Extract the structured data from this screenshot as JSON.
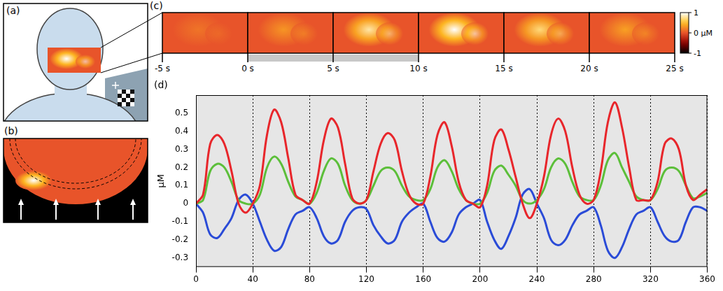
{
  "panels": {
    "a": {
      "letter": "(a)"
    },
    "b": {
      "letter": "(b)"
    },
    "c": {
      "letter": "(c)",
      "frame_times": [
        -5,
        0,
        5,
        10,
        15,
        20
      ],
      "frame_peaks": [
        0.15,
        0.3,
        0.8,
        1.0,
        0.7,
        0.35
      ],
      "time_range": [
        -5,
        25
      ],
      "time_ticks": [
        {
          "value": -5,
          "label": "-5 s"
        },
        {
          "value": 0,
          "label": "0 s"
        },
        {
          "value": 5,
          "label": "5 s"
        },
        {
          "value": 10,
          "label": "10 s"
        },
        {
          "value": 15,
          "label": "15 s"
        },
        {
          "value": 20,
          "label": "20 s"
        },
        {
          "value": 25,
          "label": "25 s"
        }
      ],
      "stimulus": [
        0,
        10
      ],
      "colorbar": {
        "range": [
          -1,
          1
        ],
        "ticks": [
          1,
          {
            "value": 0,
            "label": "0 μM"
          },
          -1
        ]
      }
    }
  },
  "chart_data": {
    "letter": "(d)",
    "type": "line",
    "y_label": "μM",
    "x": [
      0,
      5,
      10,
      15,
      20,
      25,
      30,
      35,
      40,
      45,
      50,
      55,
      60,
      65,
      70,
      75,
      80,
      85,
      90,
      95,
      100,
      105,
      110,
      115,
      120,
      125,
      130,
      135,
      140,
      145,
      150,
      155,
      160,
      165,
      170,
      175,
      180,
      185,
      190,
      195,
      200,
      205,
      210,
      215,
      220,
      225,
      230,
      235,
      240,
      245,
      250,
      255,
      260,
      265,
      270,
      275,
      280,
      285,
      290,
      295,
      300,
      305,
      310,
      315,
      320,
      325,
      330,
      335,
      340,
      345,
      350,
      355,
      360
    ],
    "series": [
      {
        "color": "#e8262b",
        "values": [
          0,
          0.05,
          0.33,
          0.38,
          0.33,
          0.18,
          0.0,
          -0.05,
          0.0,
          0.1,
          0.38,
          0.52,
          0.45,
          0.25,
          0.05,
          0.02,
          0.0,
          0.12,
          0.35,
          0.47,
          0.42,
          0.22,
          0.03,
          0.0,
          0.02,
          0.18,
          0.33,
          0.39,
          0.35,
          0.18,
          0.05,
          0.0,
          0.0,
          0.15,
          0.38,
          0.45,
          0.32,
          0.12,
          0.02,
          0.0,
          -0.02,
          0.1,
          0.35,
          0.41,
          0.3,
          0.15,
          0.0,
          -0.08,
          0.0,
          0.15,
          0.38,
          0.47,
          0.4,
          0.2,
          0.05,
          0.0,
          0.02,
          0.18,
          0.45,
          0.56,
          0.42,
          0.2,
          0.02,
          0.02,
          0.02,
          0.12,
          0.33,
          0.36,
          0.3,
          0.1,
          0.02,
          0.05,
          0.08
        ]
      },
      {
        "color": "#5cbf3a",
        "values": [
          0,
          0.02,
          0.18,
          0.22,
          0.2,
          0.12,
          0.02,
          0.0,
          0.0,
          0.05,
          0.2,
          0.26,
          0.22,
          0.12,
          0.04,
          0.02,
          0.0,
          0.06,
          0.18,
          0.25,
          0.22,
          0.1,
          0.02,
          0.0,
          0.02,
          0.1,
          0.18,
          0.2,
          0.18,
          0.1,
          0.04,
          0.02,
          0.02,
          0.08,
          0.2,
          0.24,
          0.18,
          0.08,
          0.02,
          0.0,
          0.0,
          0.06,
          0.18,
          0.21,
          0.16,
          0.1,
          0.02,
          0.0,
          0.02,
          0.08,
          0.2,
          0.25,
          0.22,
          0.12,
          0.04,
          0.02,
          0.02,
          0.1,
          0.24,
          0.28,
          0.2,
          0.12,
          0.04,
          0.02,
          0.02,
          0.08,
          0.18,
          0.2,
          0.18,
          0.1,
          0.03,
          0.04,
          0.06
        ]
      },
      {
        "color": "#2a4bd7",
        "values": [
          0,
          -0.05,
          -0.17,
          -0.19,
          -0.14,
          -0.08,
          0.02,
          0.05,
          0.0,
          -0.1,
          -0.2,
          -0.26,
          -0.24,
          -0.14,
          -0.06,
          -0.04,
          -0.02,
          -0.08,
          -0.18,
          -0.22,
          -0.2,
          -0.1,
          -0.04,
          -0.02,
          -0.03,
          -0.12,
          -0.18,
          -0.22,
          -0.2,
          -0.1,
          -0.05,
          -0.02,
          0.0,
          -0.1,
          -0.19,
          -0.21,
          -0.16,
          -0.06,
          -0.02,
          0.0,
          0.02,
          -0.1,
          -0.2,
          -0.25,
          -0.18,
          -0.08,
          0.05,
          0.08,
          0.0,
          -0.08,
          -0.2,
          -0.23,
          -0.2,
          -0.12,
          -0.06,
          -0.04,
          -0.02,
          -0.12,
          -0.26,
          -0.3,
          -0.24,
          -0.14,
          -0.06,
          -0.04,
          -0.02,
          -0.1,
          -0.18,
          -0.21,
          -0.2,
          -0.1,
          -0.02,
          -0.02,
          -0.04
        ]
      }
    ],
    "xlim": [
      0,
      360
    ],
    "xticks": [
      0,
      40,
      80,
      120,
      160,
      200,
      240,
      280,
      320,
      360
    ],
    "ylim": [
      -0.35,
      0.6
    ],
    "yticks": [
      -0.3,
      -0.2,
      -0.1,
      0,
      0.1,
      0.2,
      0.3,
      0.4,
      0.5
    ],
    "grid": "x"
  }
}
